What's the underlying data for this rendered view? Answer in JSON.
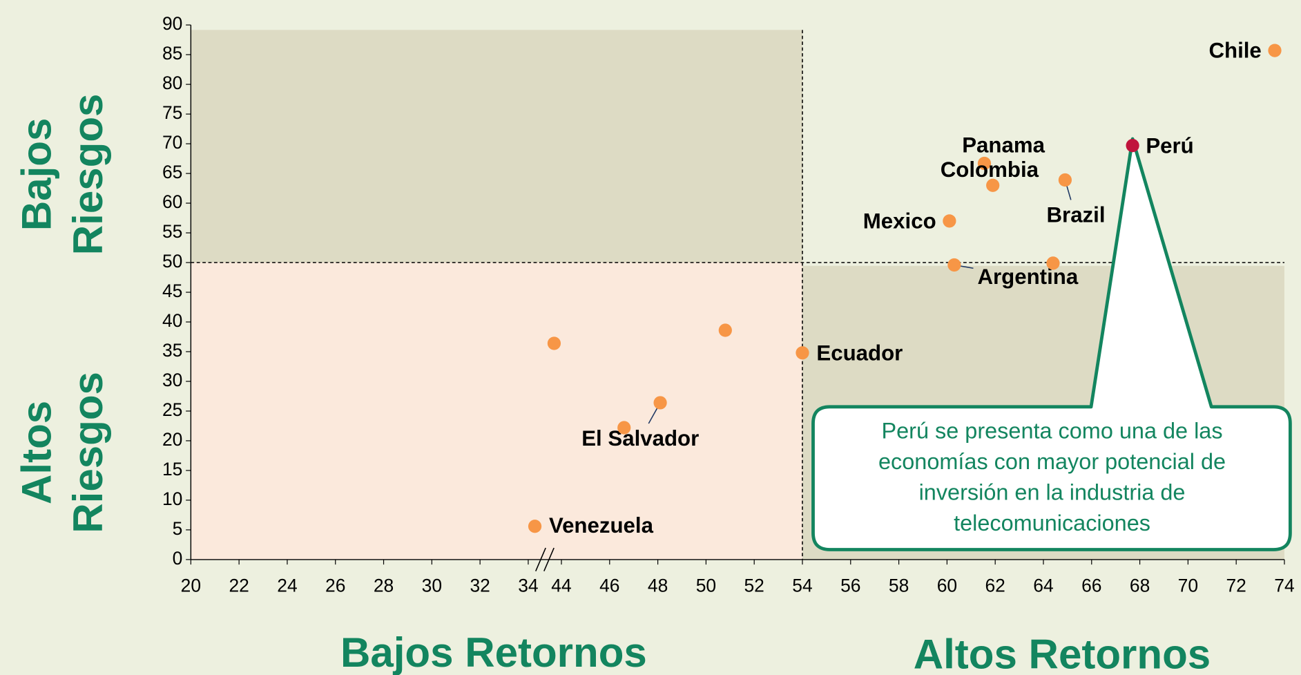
{
  "chart_data": {
    "type": "scatter",
    "y_title_top": [
      "Bajos",
      "Riesgos"
    ],
    "y_title_bottom": [
      "Altos",
      "Riesgos"
    ],
    "x_title_left": "Bajos Retornos",
    "x_title_right": "Altos Retornos",
    "callout": [
      "Perú se presenta como una de las",
      "economías con mayor potencial de",
      "inversión en la industria de",
      "telecomunicaciones"
    ],
    "color": "#f79646",
    "points": [
      {
        "label": "Chile",
        "x": 73.6,
        "y": 85.7
      },
      {
        "label": "Perú",
        "x": 67.7,
        "y": 69.7,
        "color": "#c0143c"
      },
      {
        "label": "Panama",
        "x": 61.55,
        "y": 66.7
      },
      {
        "label": "Colombia",
        "x": 61.9,
        "y": 63.0
      },
      {
        "label": "Brazil",
        "x": 64.9,
        "y": 63.9
      },
      {
        "label": "Mexico",
        "x": 60.1,
        "y": 57.0
      },
      {
        "label": "Argentina",
        "x": 60.3,
        "y": 49.6
      },
      {
        "x": 64.4,
        "y": 49.9
      },
      {
        "label": "Ecuador",
        "x": 54.0,
        "y": 34.8
      },
      {
        "x": 50.8,
        "y": 38.6
      },
      {
        "x": 41.8,
        "y": 36.4
      },
      {
        "label": "El Salvador",
        "x": 48.1,
        "y": 26.4
      },
      {
        "x": 46.6,
        "y": 22.2
      },
      {
        "label": "Venezuela",
        "x": 36.0,
        "y": 5.6
      }
    ],
    "xlim": [
      20,
      74
    ],
    "x_break": [
      34,
      44
    ],
    "xticks": [
      20,
      22,
      24,
      26,
      28,
      30,
      32,
      34,
      44,
      46,
      48,
      50,
      52,
      54,
      56,
      58,
      60,
      62,
      64,
      66,
      68,
      70,
      72,
      74
    ],
    "ylim": [
      0,
      90
    ],
    "yticks": [
      0,
      5,
      10,
      15,
      20,
      25,
      30,
      35,
      40,
      45,
      50,
      55,
      60,
      65,
      70,
      75,
      80,
      85,
      90
    ],
    "divider": {
      "x": 54,
      "y": 50
    }
  }
}
